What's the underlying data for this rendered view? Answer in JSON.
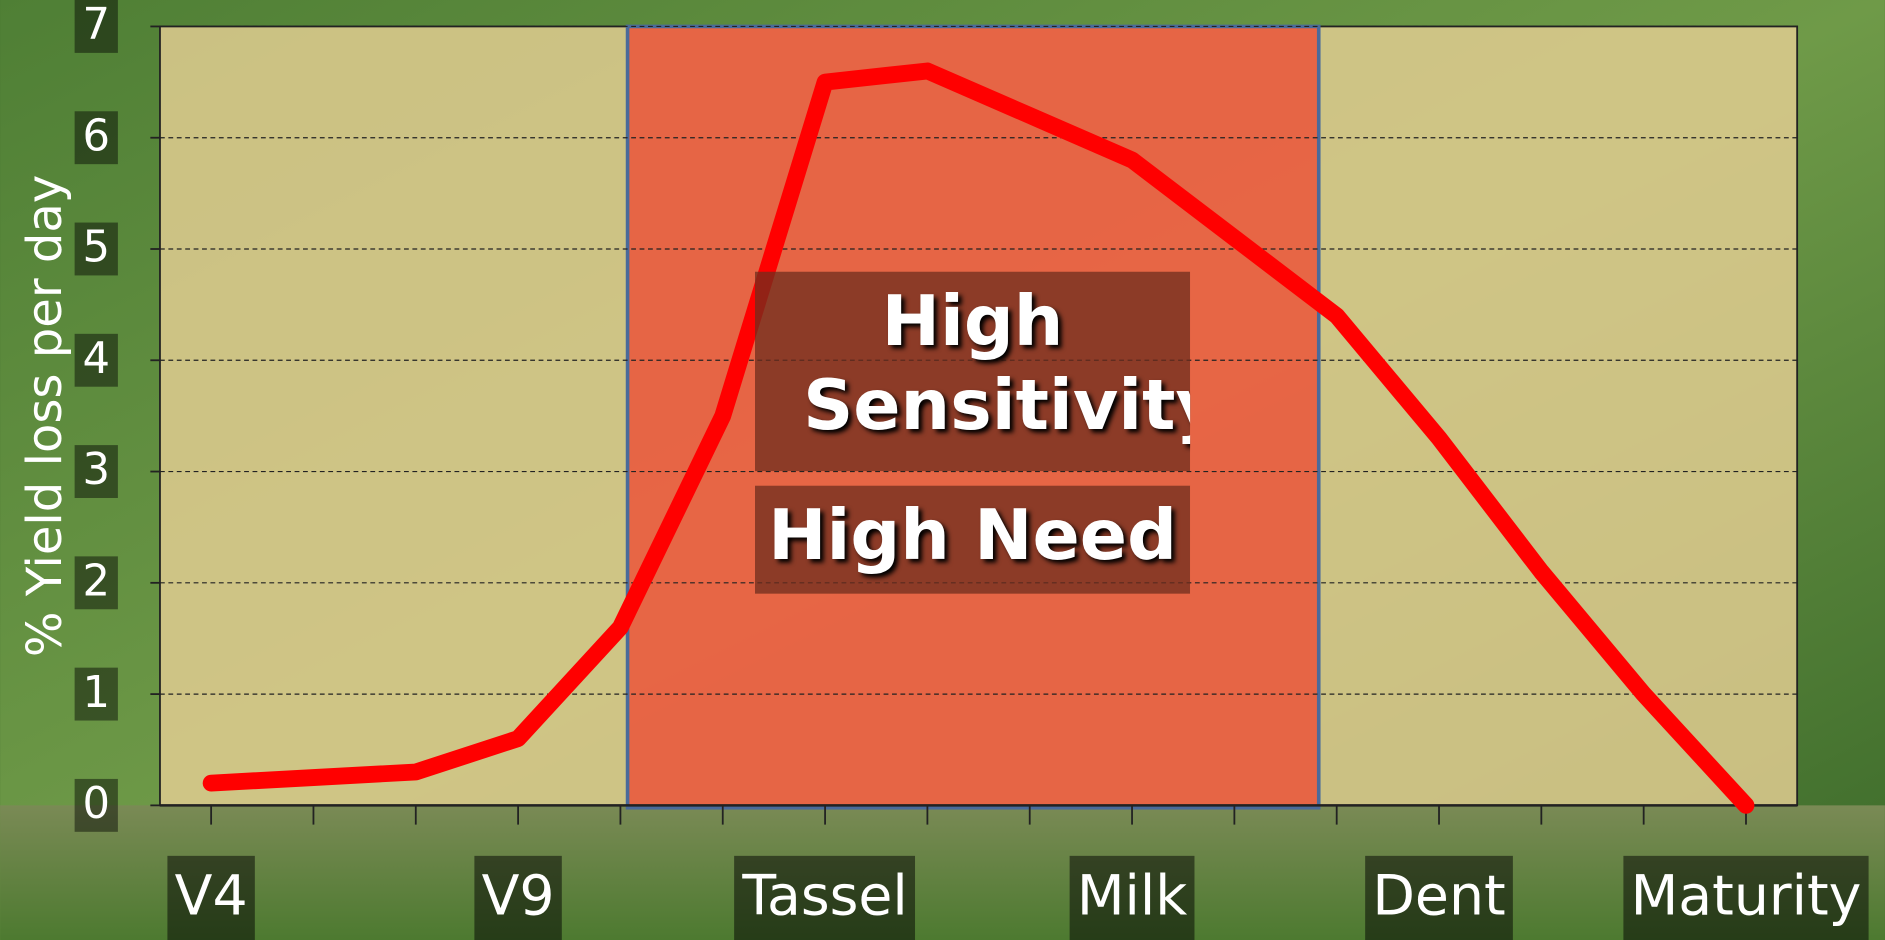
{
  "chart_data": {
    "type": "line",
    "y_label": "% Yield loss per day",
    "categories": [
      "V4",
      null,
      null,
      "V9",
      null,
      null,
      "Tassel",
      null,
      null,
      "Milk",
      null,
      null,
      "Dent",
      null,
      null,
      "Maturity"
    ],
    "values": [
      0.2,
      0.25,
      0.3,
      0.6,
      1.6,
      3.5,
      6.5,
      6.6,
      6.2,
      5.8,
      5.1,
      4.4,
      3.3,
      2.1,
      1.0,
      0.0
    ],
    "color": "#ff0000",
    "ylim": [
      0,
      7
    ],
    "yticks": [
      0,
      1,
      2,
      3,
      4,
      5,
      6,
      7
    ],
    "grid": true,
    "annotations": [
      "High Sensitivity",
      "High Need"
    ]
  }
}
